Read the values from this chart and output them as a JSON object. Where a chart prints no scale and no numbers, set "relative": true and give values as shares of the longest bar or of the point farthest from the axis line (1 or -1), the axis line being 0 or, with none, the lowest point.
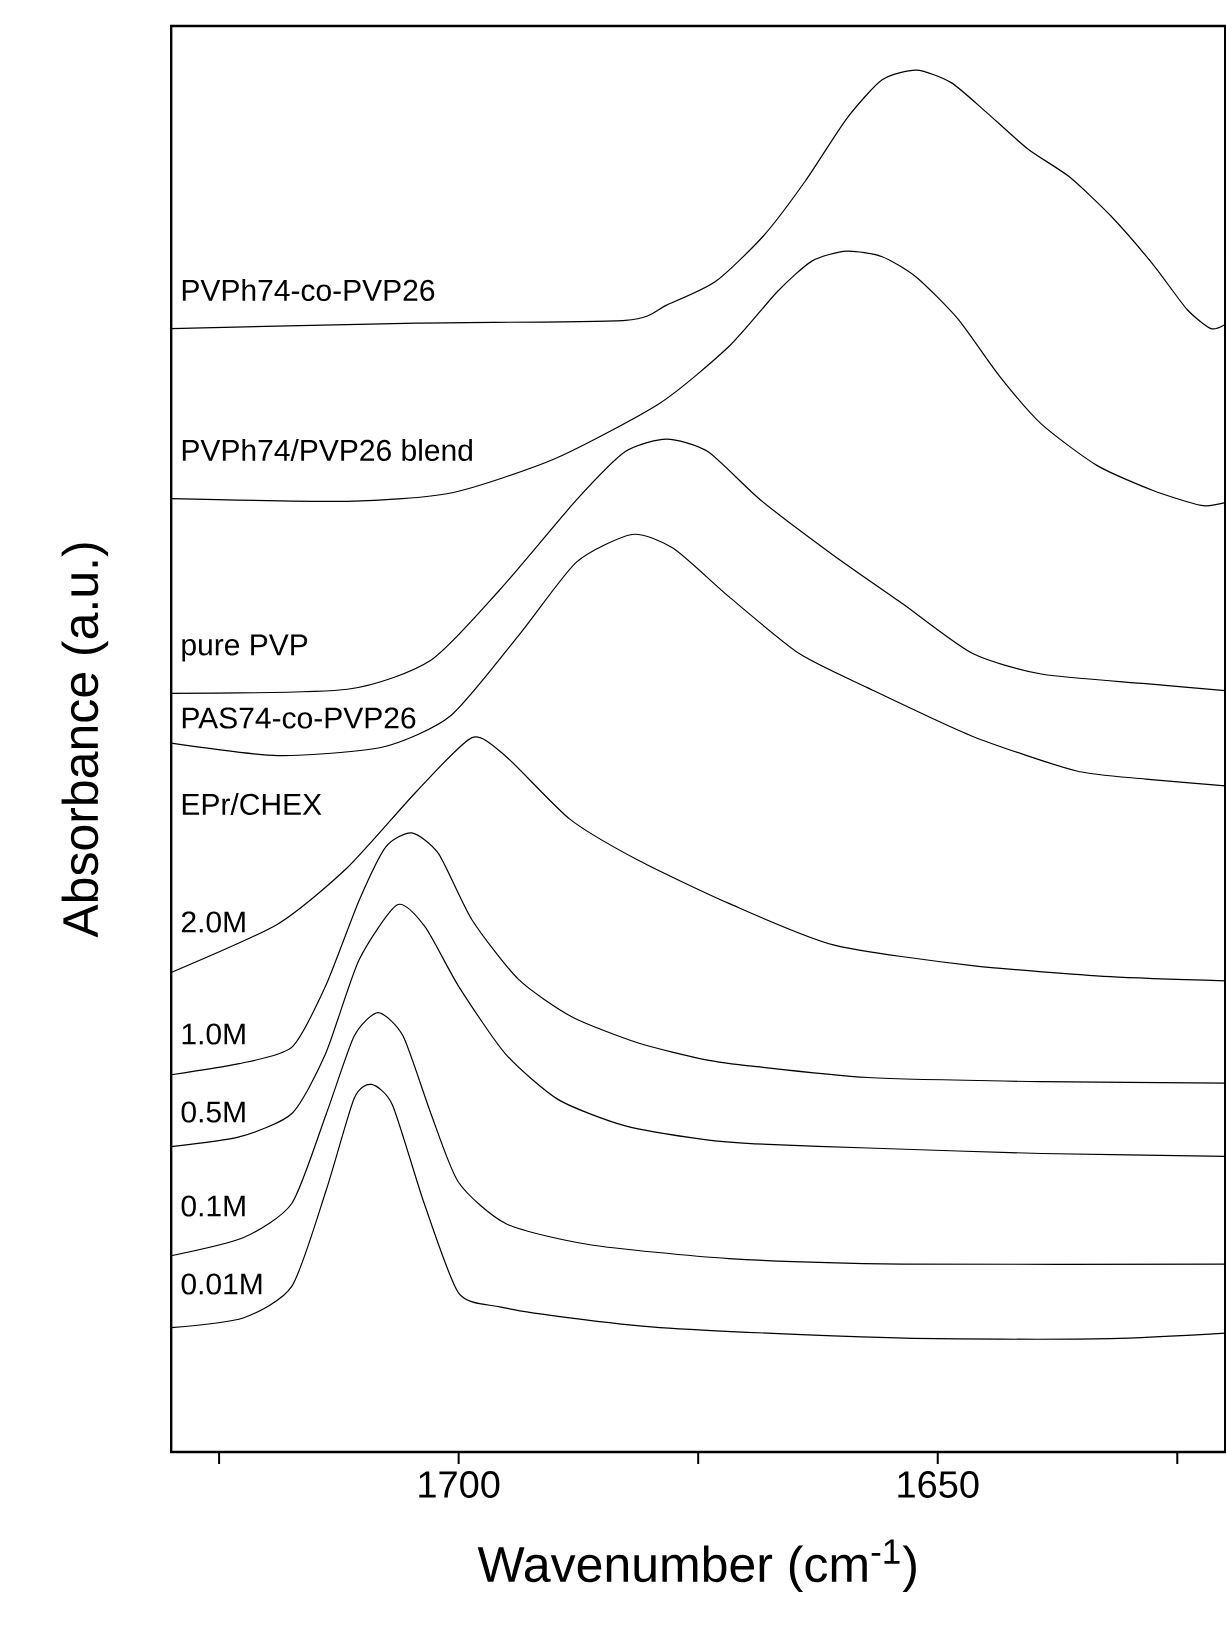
{
  "chart_data": {
    "type": "line",
    "relative": true,
    "xlabel": "Wavenumber (cm$^{-1}$)",
    "ylabel": "Absorbance (a.u.)",
    "xlim": [
      1730,
      1620
    ],
    "xticks": [
      {
        "value": 1725,
        "label": null
      },
      1700,
      {
        "value": 1675,
        "label": null
      },
      1650,
      {
        "value": 1625,
        "label": null
      }
    ],
    "series": [
      {
        "color": "#000000",
        "x": [
          1730,
          1704.4,
          1682.6,
          1678.3,
          1673.2,
          1668.2,
          1663.8,
          1659.5,
          1655.8,
          1652.2,
          1648.6,
          1645.0,
          1640.6,
          1636.3,
          1632.0,
          1627.6,
          1624.0,
          1621.5,
          1620
        ],
        "values": [
          0.813,
          0.817,
          0.819,
          0.83,
          0.847,
          0.88,
          0.92,
          0.965,
          0.993,
          1.0,
          0.991,
          0.97,
          0.943,
          0.923,
          0.895,
          0.86,
          0.827,
          0.813,
          0.816
        ]
      },
      {
        "color": "#000000",
        "x": [
          1730,
          1711.6,
          1700.8,
          1689.9,
          1679.0,
          1671.8,
          1666.7,
          1663.1,
          1659.5,
          1655.8,
          1652.2,
          1647.9,
          1643.6,
          1639.2,
          1633.4,
          1627.6,
          1622.5,
          1620
        ],
        "values": [
          0.69,
          0.688,
          0.694,
          0.719,
          0.759,
          0.8,
          0.84,
          0.862,
          0.869,
          0.865,
          0.85,
          0.82,
          0.779,
          0.744,
          0.714,
          0.696,
          0.685,
          0.687
        ]
      },
      {
        "color": "#000000",
        "x": [
          1730,
          1711.6,
          1702.9,
          1695.7,
          1687.7,
          1682.6,
          1678.3,
          1674.0,
          1668.5,
          1660.9,
          1653.7,
          1646.4,
          1639.2,
          1628.3,
          1620
        ],
        "values": [
          0.549,
          0.552,
          0.573,
          0.624,
          0.689,
          0.724,
          0.733,
          0.724,
          0.689,
          0.649,
          0.614,
          0.578,
          0.563,
          0.556,
          0.551
        ]
      },
      {
        "color": "#000000",
        "x": [
          1730,
          1718.9,
          1708.0,
          1700.8,
          1693.5,
          1687.7,
          1681.9,
          1677.6,
          1671.8,
          1664.5,
          1657.3,
          1646.4,
          1635.6,
          1628.3,
          1620
        ],
        "values": [
          0.513,
          0.504,
          0.51,
          0.533,
          0.593,
          0.644,
          0.664,
          0.654,
          0.619,
          0.578,
          0.553,
          0.518,
          0.493,
          0.487,
          0.482
        ]
      },
      {
        "color": "#000000",
        "x": [
          1730,
          1718.9,
          1711.6,
          1704.4,
          1698.6,
          1695.0,
          1688.4,
          1681.2,
          1671.8,
          1660.9,
          1646.4,
          1632.0,
          1620
        ],
        "values": [
          0.347,
          0.382,
          0.423,
          0.478,
          0.517,
          0.503,
          0.458,
          0.428,
          0.397,
          0.367,
          0.352,
          0.344,
          0.341
        ]
      },
      {
        "color": "#000000",
        "x": [
          1730,
          1722.9,
          1717.4,
          1713.9,
          1710.4,
          1707.6,
          1704.9,
          1702.1,
          1698.6,
          1693.75,
          1688.2,
          1681.25,
          1674.3,
          1669.1,
          1657.3,
          1639.2,
          1620
        ],
        "values": [
          0.273,
          0.281,
          0.293,
          0.337,
          0.399,
          0.438,
          0.448,
          0.433,
          0.385,
          0.342,
          0.315,
          0.296,
          0.284,
          0.279,
          0.271,
          0.268,
          0.267
        ]
      },
      {
        "color": "#000000",
        "x": [
          1730,
          1722.9,
          1717.4,
          1713.9,
          1710.4,
          1706.4,
          1703.5,
          1700,
          1695.1,
          1689.6,
          1682.6,
          1674.3,
          1669.1,
          1657.3,
          1639.2,
          1620
        ],
        "values": [
          0.221,
          0.228,
          0.245,
          0.288,
          0.356,
          0.396,
          0.38,
          0.337,
          0.288,
          0.255,
          0.236,
          0.226,
          0.223,
          0.22,
          0.216,
          0.214
        ]
      },
      {
        "color": "#000000",
        "x": [
          1730,
          1722.5,
          1717.4,
          1713.8,
          1710.9,
          1708.4,
          1705.8,
          1702.9,
          1700.0,
          1695.0,
          1686.3,
          1671.8,
          1653.7,
          1620
        ],
        "values": [
          0.142,
          0.155,
          0.18,
          0.245,
          0.301,
          0.318,
          0.301,
          0.245,
          0.195,
          0.165,
          0.15,
          0.14,
          0.136,
          0.136
        ]
      },
      {
        "color": "#000000",
        "x": [
          1730,
          1722.5,
          1717.4,
          1713.8,
          1710.9,
          1709.1,
          1706.9,
          1703.6,
          1700.0,
          1695.7,
          1688.4,
          1679.0,
          1660.9,
          1650.1,
          1632.0,
          1620
        ],
        "values": [
          0.09,
          0.097,
          0.12,
          0.19,
          0.256,
          0.266,
          0.251,
          0.18,
          0.115,
          0.105,
          0.097,
          0.09,
          0.084,
          0.082,
          0.082,
          0.086
        ]
      }
    ],
    "annotations": [
      "PVPh74-co-PVP26",
      "PVPh74/PVP26 blend",
      "pure PVP",
      "PAS74-co-PVP26",
      "EPr/CHEX",
      "2.0M",
      "1.0M",
      "0.5M",
      "0.1M",
      "0.01M"
    ]
  }
}
